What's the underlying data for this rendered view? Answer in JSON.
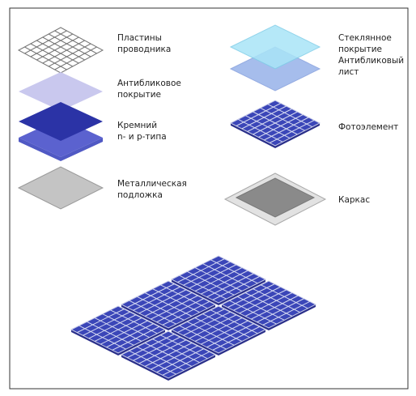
{
  "nodes": [
    {
      "lines": [
        "Пластины",
        "проводника"
      ]
    },
    {
      "lines": [
        "Антибликовое",
        "покрытие"
      ]
    },
    {
      "lines": [
        "Кремний",
        "n- и p-типа"
      ]
    },
    {
      "lines": [
        "Металлическая",
        "подложка"
      ]
    },
    {
      "lines": [
        "Стеклянное",
        "покрытие"
      ]
    },
    {
      "lines": [
        "Антибликовый",
        "лист"
      ]
    },
    {
      "lines": [
        "Фотоэлемент"
      ]
    },
    {
      "lines": [
        "Каркас"
      ]
    }
  ]
}
